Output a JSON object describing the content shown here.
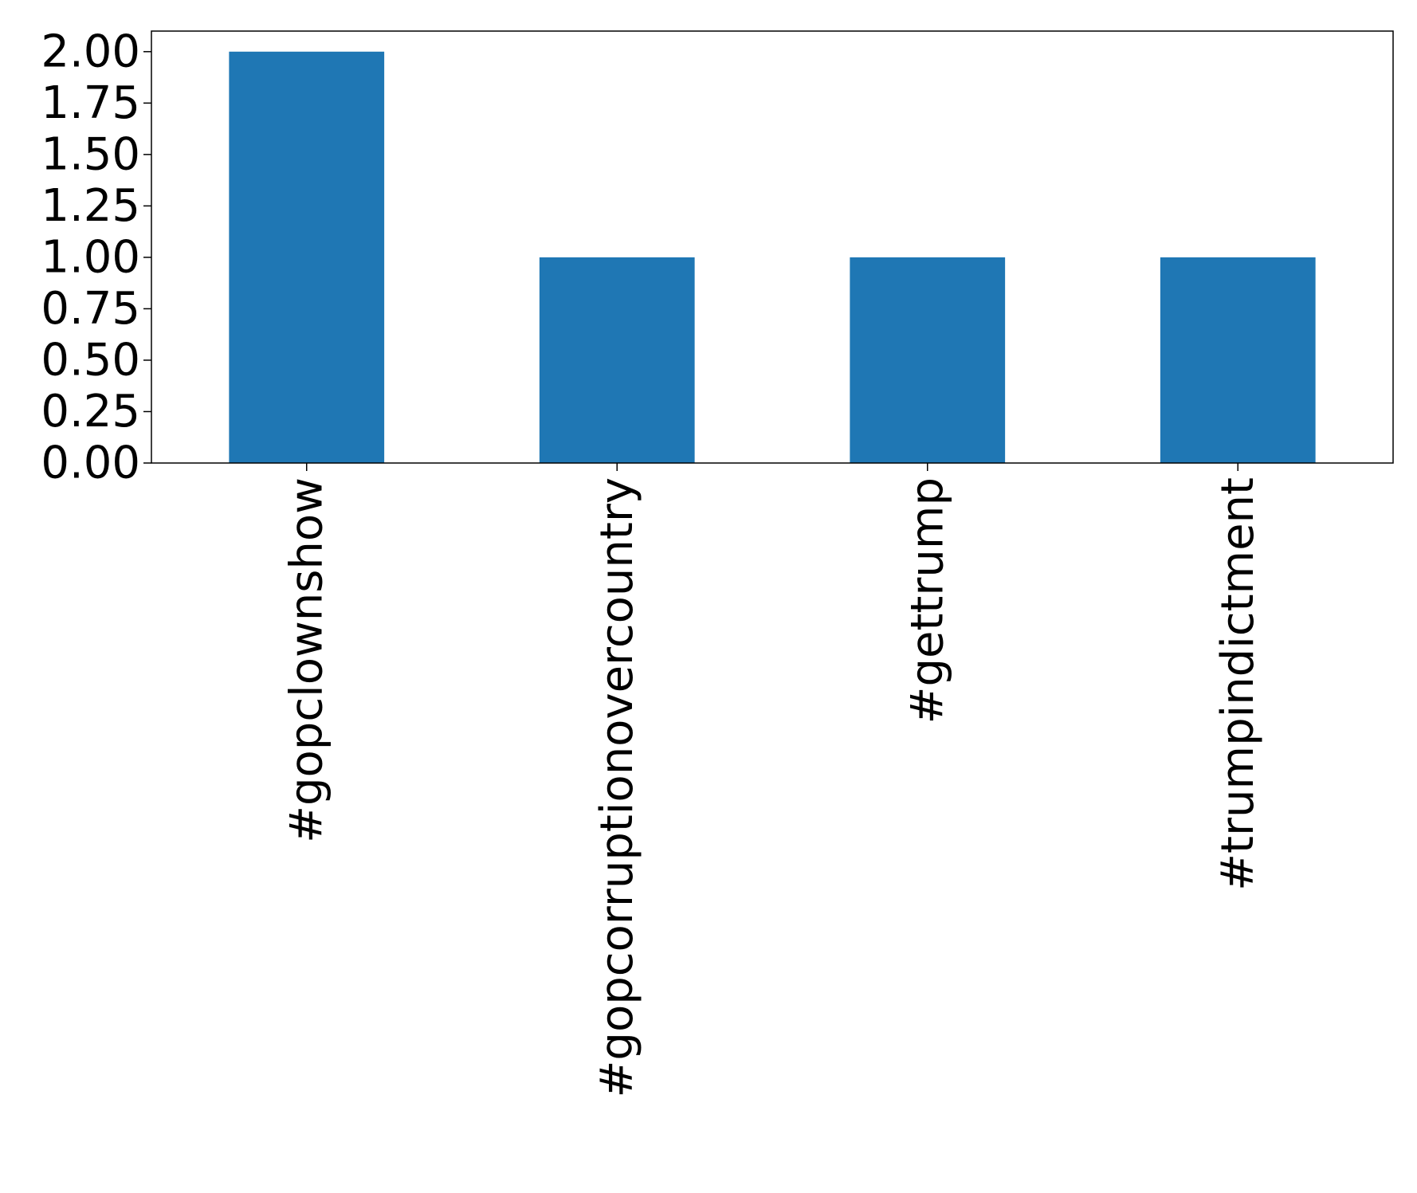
{
  "chart_data": {
    "type": "bar",
    "categories": [
      "#gopclownshow",
      "#gopcorruptionovercountry",
      "#gettrump",
      "#trumpindictment"
    ],
    "values": [
      2,
      1,
      1,
      1
    ],
    "ylim": [
      0,
      2.1
    ],
    "yticks": [
      "0.00",
      "0.25",
      "0.50",
      "0.75",
      "1.00",
      "1.25",
      "1.50",
      "1.75",
      "2.00"
    ],
    "title": "",
    "xlabel": "",
    "ylabel": "",
    "grid": false,
    "bar_color": "#1f77b4"
  }
}
